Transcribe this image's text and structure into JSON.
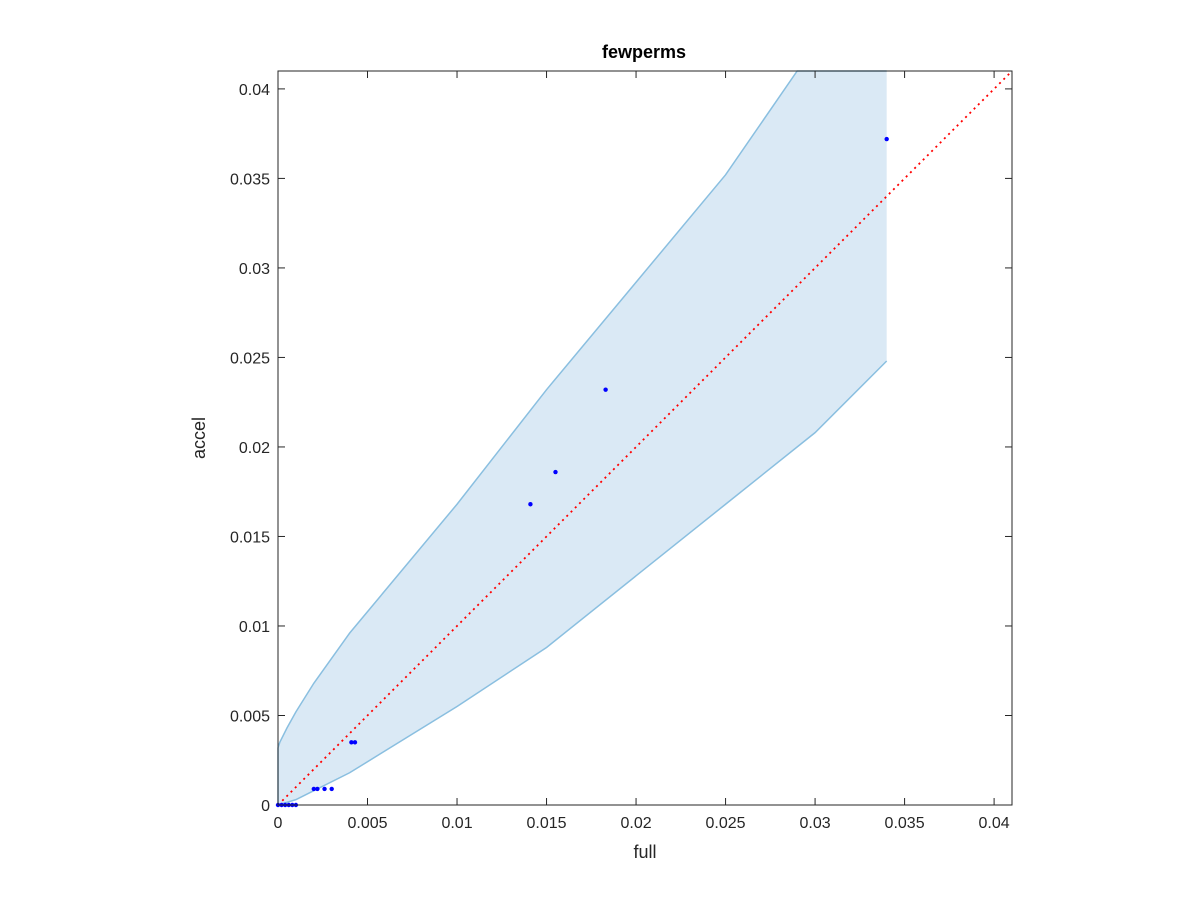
{
  "chart_data": {
    "type": "scatter",
    "title": "fewperms",
    "xlabel": "full",
    "ylabel": "accel",
    "xlim": [
      0,
      0.041
    ],
    "ylim": [
      0,
      0.041
    ],
    "xticks": [
      0,
      0.005,
      0.01,
      0.015,
      0.02,
      0.025,
      0.03,
      0.035,
      0.04
    ],
    "xtick_labels": [
      "0",
      "0.005",
      "0.01",
      "0.015",
      "0.02",
      "0.025",
      "0.03",
      "0.035",
      "0.04"
    ],
    "yticks": [
      0,
      0.005,
      0.01,
      0.015,
      0.02,
      0.025,
      0.03,
      0.035,
      0.04
    ],
    "ytick_labels": [
      "0",
      "0.005",
      "0.01",
      "0.015",
      "0.02",
      "0.025",
      "0.03",
      "0.035",
      "0.04"
    ],
    "grid": false,
    "points": {
      "color": "#0000ff",
      "x": [
        0.0,
        0.0002,
        0.0004,
        0.0006,
        0.0008,
        0.001,
        0.002,
        0.0022,
        0.0026,
        0.003,
        0.0041,
        0.0043,
        0.0141,
        0.0155,
        0.0183,
        0.034
      ],
      "y": [
        0.0,
        0.0,
        0.0,
        0.0,
        0.0,
        0.0,
        0.0009,
        0.0009,
        0.0009,
        0.0009,
        0.0035,
        0.0035,
        0.0168,
        0.0186,
        0.0232,
        0.0372
      ]
    },
    "reference_line": {
      "color": "#ff0000",
      "style": "dotted",
      "x": [
        0,
        0.041
      ],
      "y": [
        0,
        0.041
      ]
    },
    "band": {
      "fill_color": "#dae9f5",
      "edge_color": "#8abfe0",
      "upper": {
        "x": [
          0,
          0.0001,
          0.0005,
          0.001,
          0.002,
          0.004,
          0.01,
          0.015,
          0.02,
          0.025,
          0.029,
          0.034
        ],
        "y": [
          0.0032,
          0.0035,
          0.0043,
          0.0052,
          0.0068,
          0.0096,
          0.0168,
          0.0232,
          0.0292,
          0.0352,
          0.041,
          0.041
        ]
      },
      "lower": {
        "x": [
          0,
          0.001,
          0.002,
          0.004,
          0.01,
          0.015,
          0.02,
          0.025,
          0.03,
          0.034
        ],
        "y": [
          0,
          0.0003,
          0.0008,
          0.0018,
          0.0055,
          0.0088,
          0.0128,
          0.0168,
          0.0208,
          0.0248
        ]
      }
    }
  }
}
